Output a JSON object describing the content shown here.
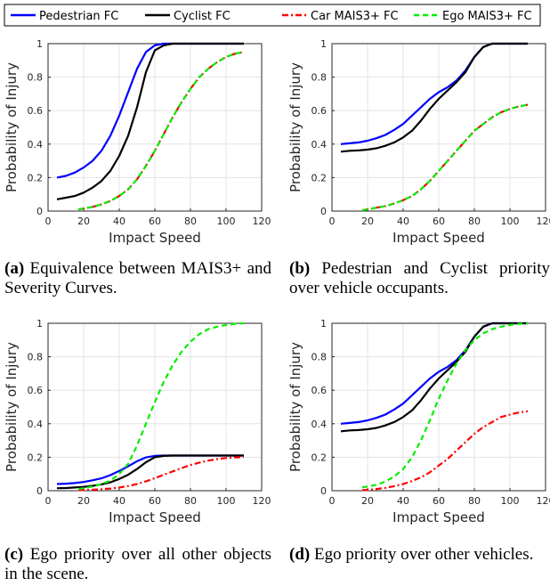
{
  "legend": {
    "entries": [
      {
        "label": "Pedestrian FC",
        "color": "#0000ff",
        "dash": "solid"
      },
      {
        "label": "Cyclist FC",
        "color": "#000000",
        "dash": "solid"
      },
      {
        "label": "Car MAIS3+ FC",
        "color": "#ff0000",
        "dash": "dashdot"
      },
      {
        "label": "Ego MAIS3+ FC",
        "color": "#00ee00",
        "dash": "dashed"
      }
    ]
  },
  "captions": [
    {
      "tag": "(a)",
      "text": "Equivalence between MAIS3+ and Severity Curves."
    },
    {
      "tag": "(b)",
      "text": "Pedestrian and Cyclist priority over vehicle occupants."
    },
    {
      "tag": "(c)",
      "text": "Ego priority over all other objects in the scene."
    },
    {
      "tag": "(d)",
      "text": "Ego priority over other vehicles."
    }
  ],
  "chart_data": [
    {
      "type": "line",
      "panel": "a",
      "xlabel": "Impact Speed",
      "ylabel": "Probability of Injury",
      "xlim": [
        0,
        120
      ],
      "ylim": [
        0,
        1
      ],
      "xticks": [
        0,
        20,
        40,
        60,
        80,
        100,
        120
      ],
      "yticks": [
        0,
        0.2,
        0.4,
        0.6,
        0.8,
        1
      ],
      "yticklabels": [
        "0",
        "0.2",
        "0.4",
        "0.6",
        "0.8",
        "1"
      ],
      "grid": true,
      "series": [
        {
          "name": "Pedestrian FC",
          "x": [
            5,
            10,
            15,
            20,
            25,
            30,
            35,
            40,
            45,
            50,
            55,
            60,
            65,
            70,
            80,
            90,
            100,
            110
          ],
          "y": [
            0.2,
            0.21,
            0.23,
            0.26,
            0.3,
            0.36,
            0.45,
            0.57,
            0.71,
            0.85,
            0.95,
            0.99,
            1,
            1,
            1,
            1,
            1,
            1
          ]
        },
        {
          "name": "Cyclist FC",
          "x": [
            5,
            10,
            15,
            20,
            25,
            30,
            35,
            40,
            45,
            50,
            55,
            60,
            65,
            70,
            80,
            90,
            100,
            110
          ],
          "y": [
            0.07,
            0.08,
            0.09,
            0.11,
            0.14,
            0.18,
            0.24,
            0.33,
            0.45,
            0.62,
            0.83,
            0.96,
            0.99,
            1,
            1,
            1,
            1,
            1
          ]
        },
        {
          "name": "Car MAIS3+ FC",
          "x": [
            17,
            20,
            25,
            30,
            35,
            40,
            45,
            50,
            55,
            60,
            65,
            70,
            75,
            80,
            85,
            90,
            95,
            100,
            105,
            110
          ],
          "y": [
            0.01,
            0.015,
            0.025,
            0.04,
            0.06,
            0.09,
            0.13,
            0.19,
            0.27,
            0.36,
            0.46,
            0.56,
            0.65,
            0.73,
            0.8,
            0.85,
            0.89,
            0.92,
            0.94,
            0.95
          ]
        },
        {
          "name": "Ego MAIS3+ FC",
          "x": [
            17,
            20,
            25,
            30,
            35,
            40,
            45,
            50,
            55,
            60,
            65,
            70,
            75,
            80,
            85,
            90,
            95,
            100,
            105,
            110
          ],
          "y": [
            0.01,
            0.015,
            0.025,
            0.04,
            0.06,
            0.09,
            0.13,
            0.19,
            0.27,
            0.36,
            0.46,
            0.56,
            0.65,
            0.73,
            0.8,
            0.85,
            0.89,
            0.92,
            0.94,
            0.95
          ]
        }
      ]
    },
    {
      "type": "line",
      "panel": "b",
      "xlabel": "Impact Speed",
      "ylabel": "Probability of Injury",
      "xlim": [
        0,
        120
      ],
      "ylim": [
        0,
        1
      ],
      "xticks": [
        0,
        20,
        40,
        60,
        80,
        100,
        120
      ],
      "yticks": [
        0,
        0.2,
        0.4,
        0.6,
        0.8,
        1
      ],
      "yticklabels": [
        "0",
        "0.2",
        "0.4",
        "0.6",
        "0.8",
        "1"
      ],
      "grid": true,
      "series": [
        {
          "name": "Pedestrian FC",
          "x": [
            5,
            10,
            15,
            20,
            25,
            30,
            35,
            40,
            45,
            50,
            55,
            60,
            65,
            70,
            75,
            80,
            85,
            90,
            100,
            110
          ],
          "y": [
            0.4,
            0.405,
            0.41,
            0.42,
            0.435,
            0.455,
            0.485,
            0.52,
            0.57,
            0.62,
            0.67,
            0.71,
            0.74,
            0.78,
            0.84,
            0.92,
            0.98,
            1,
            1,
            1
          ]
        },
        {
          "name": "Cyclist FC",
          "x": [
            5,
            10,
            15,
            20,
            25,
            30,
            35,
            40,
            45,
            50,
            55,
            60,
            65,
            70,
            75,
            80,
            85,
            90,
            100,
            110
          ],
          "y": [
            0.355,
            0.36,
            0.362,
            0.367,
            0.375,
            0.39,
            0.41,
            0.44,
            0.48,
            0.54,
            0.61,
            0.67,
            0.72,
            0.77,
            0.83,
            0.92,
            0.98,
            1,
            1,
            1
          ]
        },
        {
          "name": "Car MAIS3+ FC",
          "x": [
            17,
            20,
            25,
            30,
            35,
            40,
            45,
            50,
            55,
            60,
            65,
            70,
            75,
            80,
            85,
            90,
            95,
            100,
            105,
            110
          ],
          "y": [
            0.005,
            0.01,
            0.02,
            0.03,
            0.045,
            0.065,
            0.09,
            0.13,
            0.18,
            0.24,
            0.3,
            0.36,
            0.42,
            0.48,
            0.52,
            0.56,
            0.59,
            0.61,
            0.625,
            0.635
          ]
        },
        {
          "name": "Ego MAIS3+ FC",
          "x": [
            17,
            20,
            25,
            30,
            35,
            40,
            45,
            50,
            55,
            60,
            65,
            70,
            75,
            80,
            85,
            90,
            95,
            100,
            105,
            110
          ],
          "y": [
            0.005,
            0.01,
            0.02,
            0.03,
            0.045,
            0.065,
            0.09,
            0.13,
            0.18,
            0.24,
            0.3,
            0.36,
            0.42,
            0.48,
            0.52,
            0.56,
            0.59,
            0.61,
            0.625,
            0.635
          ]
        }
      ]
    },
    {
      "type": "line",
      "panel": "c",
      "xlabel": "Impact Speed",
      "ylabel": "Probability of Injury",
      "xlim": [
        0,
        120
      ],
      "ylim": [
        0,
        1
      ],
      "xticks": [
        0,
        20,
        40,
        60,
        80,
        100,
        120
      ],
      "yticks": [
        0,
        0.2,
        0.4,
        0.6,
        0.8,
        1
      ],
      "yticklabels": [
        "0",
        "0.2",
        "0.4",
        "0.6",
        "0.8",
        "1"
      ],
      "grid": true,
      "series": [
        {
          "name": "Pedestrian FC",
          "x": [
            5,
            10,
            15,
            20,
            25,
            30,
            35,
            40,
            45,
            50,
            55,
            60,
            65,
            70,
            80,
            90,
            100,
            110
          ],
          "y": [
            0.04,
            0.042,
            0.046,
            0.052,
            0.062,
            0.074,
            0.093,
            0.118,
            0.146,
            0.176,
            0.199,
            0.208,
            0.21,
            0.21,
            0.21,
            0.21,
            0.21,
            0.21
          ]
        },
        {
          "name": "Cyclist FC",
          "x": [
            5,
            10,
            15,
            20,
            25,
            30,
            35,
            40,
            45,
            50,
            55,
            60,
            65,
            70,
            80,
            90,
            100,
            110
          ],
          "y": [
            0.015,
            0.016,
            0.019,
            0.023,
            0.029,
            0.038,
            0.05,
            0.07,
            0.095,
            0.13,
            0.17,
            0.2,
            0.208,
            0.21,
            0.21,
            0.21,
            0.21,
            0.21
          ]
        },
        {
          "name": "Car MAIS3+ FC",
          "x": [
            17,
            20,
            25,
            30,
            35,
            40,
            45,
            50,
            55,
            60,
            65,
            70,
            75,
            80,
            85,
            90,
            95,
            100,
            105,
            110
          ],
          "y": [
            0.003,
            0.004,
            0.006,
            0.009,
            0.013,
            0.019,
            0.028,
            0.04,
            0.056,
            0.075,
            0.095,
            0.115,
            0.135,
            0.153,
            0.168,
            0.18,
            0.189,
            0.195,
            0.199,
            0.201
          ]
        },
        {
          "name": "Ego MAIS3+ FC",
          "x": [
            17,
            20,
            25,
            30,
            35,
            40,
            45,
            50,
            55,
            60,
            65,
            70,
            75,
            80,
            85,
            90,
            95,
            100,
            105,
            110
          ],
          "y": [
            0.01,
            0.015,
            0.025,
            0.04,
            0.06,
            0.1,
            0.16,
            0.27,
            0.4,
            0.53,
            0.65,
            0.75,
            0.83,
            0.89,
            0.935,
            0.965,
            0.98,
            0.99,
            0.997,
            1
          ]
        }
      ]
    },
    {
      "type": "line",
      "panel": "d",
      "xlabel": "Impact Speed",
      "ylabel": "Probability of Injury",
      "xlim": [
        0,
        120
      ],
      "ylim": [
        0,
        1
      ],
      "xticks": [
        0,
        20,
        40,
        60,
        80,
        100,
        120
      ],
      "yticks": [
        0,
        0.2,
        0.4,
        0.6,
        0.8,
        1
      ],
      "yticklabels": [
        "0",
        "0.2",
        "0.4",
        "0.6",
        "0.8",
        "1"
      ],
      "grid": true,
      "series": [
        {
          "name": "Pedestrian FC",
          "x": [
            5,
            10,
            15,
            20,
            25,
            30,
            35,
            40,
            45,
            50,
            55,
            60,
            65,
            70,
            75,
            80,
            85,
            90,
            100,
            110
          ],
          "y": [
            0.4,
            0.405,
            0.41,
            0.42,
            0.435,
            0.455,
            0.485,
            0.52,
            0.57,
            0.62,
            0.67,
            0.71,
            0.74,
            0.78,
            0.84,
            0.92,
            0.98,
            1,
            1,
            1
          ]
        },
        {
          "name": "Cyclist FC",
          "x": [
            5,
            10,
            15,
            20,
            25,
            30,
            35,
            40,
            45,
            50,
            55,
            60,
            65,
            70,
            75,
            80,
            85,
            90,
            100,
            110
          ],
          "y": [
            0.355,
            0.36,
            0.362,
            0.367,
            0.375,
            0.39,
            0.41,
            0.44,
            0.48,
            0.54,
            0.61,
            0.67,
            0.72,
            0.77,
            0.83,
            0.92,
            0.98,
            1,
            1,
            1
          ]
        },
        {
          "name": "Car MAIS3+ FC",
          "x": [
            17,
            20,
            25,
            30,
            35,
            40,
            45,
            50,
            55,
            60,
            65,
            70,
            75,
            80,
            85,
            90,
            95,
            100,
            105,
            110
          ],
          "y": [
            0.003,
            0.005,
            0.01,
            0.017,
            0.027,
            0.04,
            0.058,
            0.08,
            0.11,
            0.15,
            0.19,
            0.24,
            0.29,
            0.34,
            0.38,
            0.41,
            0.44,
            0.455,
            0.467,
            0.475
          ]
        },
        {
          "name": "Ego MAIS3+ FC",
          "x": [
            17,
            20,
            25,
            30,
            35,
            40,
            45,
            50,
            55,
            60,
            65,
            70,
            75,
            80,
            85,
            90,
            95,
            100,
            105,
            110
          ],
          "y": [
            0.02,
            0.025,
            0.035,
            0.055,
            0.085,
            0.13,
            0.2,
            0.3,
            0.42,
            0.55,
            0.66,
            0.76,
            0.84,
            0.9,
            0.94,
            0.965,
            0.98,
            0.99,
            0.997,
            1
          ]
        }
      ]
    }
  ]
}
